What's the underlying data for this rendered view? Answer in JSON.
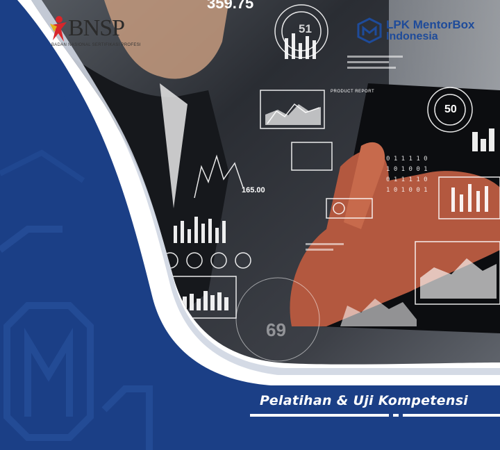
{
  "logos": {
    "bnsp": {
      "name": "BNSP",
      "subtitle": "BADAN NASIONAL SERTIFIKASI PROFESI"
    },
    "lpk": {
      "line1": "LPK MentorBox",
      "line2": "Indonesia"
    }
  },
  "hud": {
    "top_value": "359.75",
    "gauge_51": "51",
    "gauge_50": "50",
    "chart_value": "165.00",
    "gauge_69": "69",
    "report_label": "PRODUCT REPORT",
    "binary_rows": [
      "0 1 1 1 1 0",
      "1 0 1 0 0 1",
      "0 1 1 1 1 0",
      "1 0 1 0 0 1"
    ]
  },
  "banner": {
    "tagline": "Pelatihan & Uji Kompetensi"
  },
  "colors": {
    "navy": "#1b3f86",
    "deep_navy": "#13306b",
    "white": "#ffffff",
    "accent_red": "#d8262b"
  }
}
